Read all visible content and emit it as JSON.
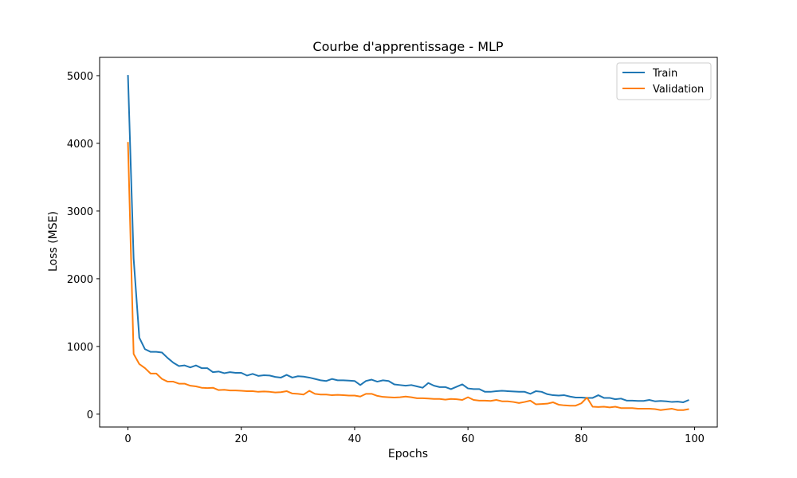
{
  "chart_data": {
    "type": "line",
    "title": "Courbe d'apprentissage - MLP",
    "xlabel": "Epochs",
    "ylabel": "Loss (MSE)",
    "xlim": [
      -5,
      104
    ],
    "ylim": [
      -190,
      5270
    ],
    "xticks": [
      0,
      20,
      40,
      60,
      80,
      100
    ],
    "yticks": [
      0,
      1000,
      2000,
      3000,
      4000,
      5000
    ],
    "grid": false,
    "legend_position": "top-right",
    "x": [
      0,
      1,
      2,
      3,
      4,
      5,
      6,
      7,
      8,
      9,
      10,
      11,
      12,
      13,
      14,
      15,
      16,
      17,
      18,
      19,
      20,
      21,
      22,
      23,
      24,
      25,
      26,
      27,
      28,
      29,
      30,
      31,
      32,
      33,
      34,
      35,
      36,
      37,
      38,
      39,
      40,
      41,
      42,
      43,
      44,
      45,
      46,
      47,
      48,
      49,
      50,
      51,
      52,
      53,
      54,
      55,
      56,
      57,
      58,
      59,
      60,
      61,
      62,
      63,
      64,
      65,
      66,
      67,
      68,
      69,
      70,
      71,
      72,
      73,
      74,
      75,
      76,
      77,
      78,
      79,
      80,
      81,
      82,
      83,
      84,
      85,
      86,
      87,
      88,
      89,
      90,
      91,
      92,
      93,
      94,
      95,
      96,
      97,
      98,
      99
    ],
    "series": [
      {
        "name": "Train",
        "color": "#1f77b4",
        "values": [
          5010,
          2300,
          1130,
          960,
          920,
          920,
          910,
          830,
          760,
          710,
          720,
          690,
          720,
          680,
          680,
          620,
          630,
          605,
          620,
          610,
          610,
          570,
          595,
          565,
          575,
          570,
          550,
          540,
          580,
          540,
          560,
          555,
          540,
          520,
          500,
          490,
          520,
          500,
          500,
          495,
          490,
          430,
          490,
          510,
          480,
          500,
          490,
          440,
          430,
          420,
          430,
          410,
          390,
          460,
          420,
          400,
          400,
          370,
          405,
          440,
          380,
          370,
          370,
          330,
          330,
          340,
          345,
          340,
          335,
          330,
          330,
          300,
          340,
          330,
          295,
          280,
          275,
          280,
          260,
          245,
          245,
          240,
          240,
          280,
          240,
          240,
          220,
          230,
          200,
          200,
          195,
          195,
          210,
          190,
          195,
          190,
          180,
          185,
          175,
          210
        ]
      },
      {
        "name": "Validation",
        "color": "#ff7f0e",
        "values": [
          4020,
          890,
          740,
          680,
          600,
          600,
          520,
          480,
          480,
          450,
          450,
          420,
          410,
          390,
          385,
          390,
          355,
          360,
          350,
          350,
          345,
          340,
          340,
          330,
          335,
          330,
          320,
          325,
          340,
          305,
          300,
          290,
          345,
          300,
          290,
          290,
          280,
          285,
          280,
          275,
          275,
          260,
          300,
          300,
          270,
          255,
          250,
          245,
          250,
          260,
          250,
          235,
          235,
          230,
          225,
          225,
          215,
          225,
          220,
          210,
          250,
          210,
          200,
          200,
          195,
          210,
          190,
          190,
          180,
          165,
          180,
          200,
          145,
          150,
          155,
          175,
          140,
          130,
          125,
          125,
          160,
          245,
          110,
          105,
          110,
          100,
          110,
          90,
          90,
          90,
          80,
          80,
          80,
          75,
          60,
          70,
          80,
          60,
          60,
          75
        ]
      }
    ]
  }
}
